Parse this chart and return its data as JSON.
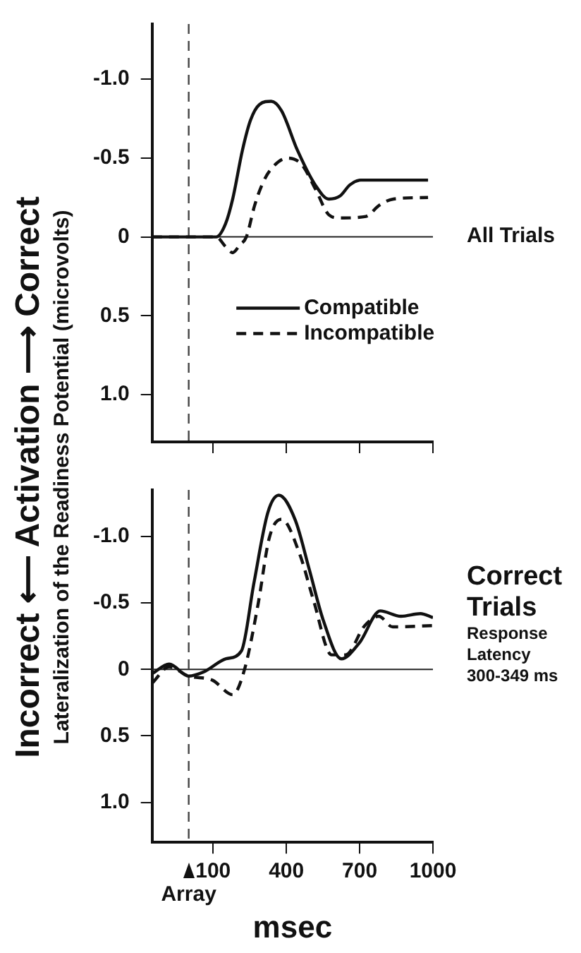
{
  "chart_data": [
    {
      "type": "line",
      "ylabel": "Lateralization of the Readiness Potential (microvolts)",
      "xlim": [
        -150,
        1000
      ],
      "xticks": [
        {
          "value": 100,
          "label": null
        },
        {
          "value": 400,
          "label": null
        },
        {
          "value": 700,
          "label": null
        },
        {
          "value": 1000,
          "label": null
        }
      ],
      "ylim": [
        1.3,
        -1.35
      ],
      "yticks": [
        {
          "value": -1,
          "label": "-1.0"
        },
        {
          "value": -0.5,
          "label": "-0.5"
        },
        0,
        {
          "value": 0.5,
          "label": "0.5"
        },
        {
          "value": 1,
          "label": "1.0"
        }
      ],
      "tick_labels": "y",
      "grid": false,
      "legend": "bottom",
      "annotations": [
        "Incorrect ⟵ Activation ⟶ Correct",
        "All Trials"
      ],
      "ref_lines": [
        {
          "axis": "y",
          "value": 0,
          "color": "#222222",
          "line_style": "solid"
        },
        {
          "axis": "x",
          "value": 0,
          "color": "#444444",
          "line_style": "dashed"
        }
      ],
      "series": [
        {
          "name": "Compatible",
          "color": "#111111",
          "line_style": "solid",
          "x": [
            -150,
            113,
            150,
            180,
            220,
            253,
            290,
            338,
            380,
            445,
            518,
            574,
            620,
            660,
            704,
            980
          ],
          "values": [
            0,
            0,
            -0.08,
            -0.24,
            -0.55,
            -0.74,
            -0.84,
            -0.86,
            -0.8,
            -0.55,
            -0.33,
            -0.24,
            -0.26,
            -0.33,
            -0.36,
            -0.36
          ]
        },
        {
          "name": "Incompatible",
          "color": "#111111",
          "line_style": "dashed",
          "x": [
            -150,
            113,
            150,
            180,
            210,
            236,
            270,
            300,
            332,
            405,
            462,
            520,
            574,
            620,
            726,
            780,
            838,
            980
          ],
          "values": [
            0,
            0,
            0.06,
            0.1,
            0.05,
            0,
            -0.2,
            -0.33,
            -0.42,
            -0.5,
            -0.46,
            -0.3,
            -0.14,
            -0.12,
            -0.13,
            -0.2,
            -0.24,
            -0.25
          ]
        }
      ]
    },
    {
      "type": "line",
      "xlabel": "msec",
      "xlim": [
        -150,
        1000
      ],
      "xticks": [
        100,
        400,
        700,
        1000
      ],
      "ylim": [
        1.3,
        -1.35
      ],
      "yticks": [
        {
          "value": -1,
          "label": "-1.0"
        },
        {
          "value": -0.5,
          "label": "-0.5"
        },
        0,
        {
          "value": 0.5,
          "label": "0.5"
        },
        {
          "value": 1,
          "label": "1.0"
        }
      ],
      "grid": false,
      "annotations": [
        "Correct Trials",
        "Response Latency 300-349 ms"
      ],
      "ref_lines": [
        {
          "axis": "y",
          "value": 0,
          "color": "#222222",
          "line_style": "solid"
        },
        {
          "axis": "x",
          "value": 0,
          "label": "Array",
          "color": "#444444",
          "line_style": "dashed"
        }
      ],
      "series": [
        {
          "color": "#111111",
          "line_style": "solid",
          "x": [
            -148,
            -80,
            0,
            60,
            153,
            216,
            267,
            324,
            369,
            437,
            494,
            551,
            625,
            699,
            784,
            869,
            949,
            1000
          ],
          "values": [
            0.03,
            -0.04,
            0.05,
            0.02,
            -0.08,
            -0.14,
            -0.65,
            -1.18,
            -1.31,
            -1.12,
            -0.75,
            -0.37,
            -0.08,
            -0.2,
            -0.44,
            -0.4,
            -0.42,
            -0.39
          ]
        },
        {
          "color": "#111111",
          "line_style": "dashed",
          "x": [
            -148,
            -80,
            0,
            96,
            180,
            227,
            284,
            330,
            380,
            454,
            511,
            585,
            642,
            721,
            778,
            835,
            1000
          ],
          "values": [
            0.1,
            -0.02,
            0.05,
            0.08,
            0.19,
            0.01,
            -0.49,
            -0.99,
            -1.13,
            -0.87,
            -0.52,
            -0.11,
            -0.11,
            -0.33,
            -0.4,
            -0.32,
            -0.33
          ]
        }
      ]
    }
  ]
}
